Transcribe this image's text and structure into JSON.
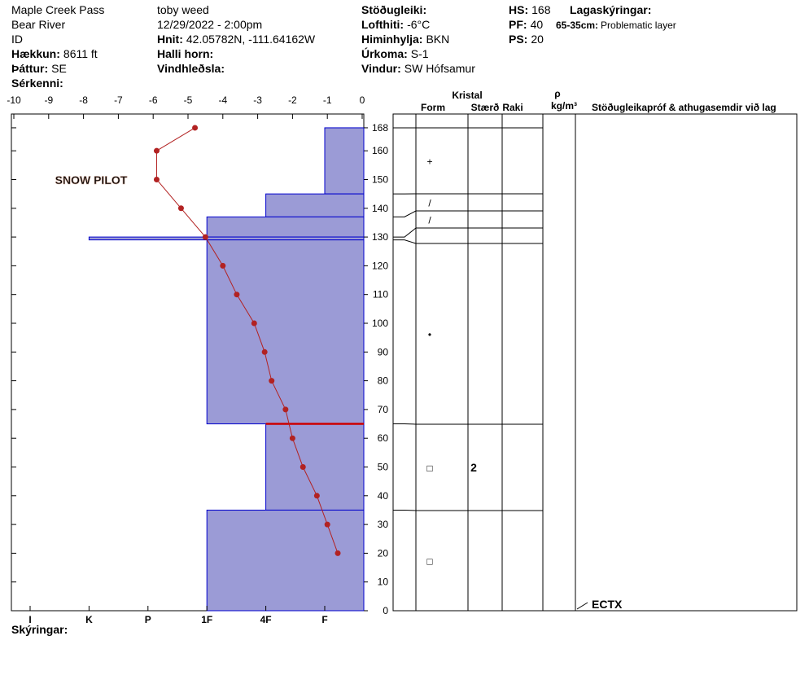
{
  "header": {
    "columns": [
      [
        {
          "value": "Maple Creek Pass"
        },
        {
          "value": "Bear River"
        },
        {
          "value": "ID"
        },
        {
          "label": "Hækkun:",
          "value": "8611 ft"
        },
        {
          "label": "Þáttur:",
          "value": "SE"
        },
        {
          "label": "Sérkenni:"
        }
      ],
      [
        {
          "value": "toby weed"
        },
        {
          "value": "12/29/2022 - 2:00pm"
        },
        {
          "label": "Hnit:",
          "value": "42.05782N, -111.64162W"
        },
        {
          "label": "Halli horn:"
        },
        {
          "label": "Vindhleðsla:"
        }
      ],
      [
        {
          "label": "Stöðugleiki:"
        },
        {
          "label": "Lofthiti:",
          "value": "-6°C"
        },
        {
          "label": "Himinhylja:",
          "value": "BKN"
        },
        {
          "label": "Úrkoma:",
          "value": "S-1"
        },
        {
          "label": "Vindur:",
          "value": "SW Hófsamur"
        }
      ],
      [
        {
          "label": "HS:",
          "value": "168"
        },
        {
          "label": "PF:",
          "value": "40"
        },
        {
          "label": "PS:",
          "value": "20"
        }
      ]
    ],
    "legend_title": "Lagaskýringar:",
    "legend": [
      {
        "label": "65-35cm:",
        "value": "Problematic layer"
      }
    ]
  },
  "footer": "Skýringar:",
  "chart_data": {
    "type": "snow_profile",
    "watermark": "SNOW PILOT",
    "temperature": {
      "xlim": [
        -10,
        0
      ],
      "xticks": [
        -10,
        -9,
        -8,
        -7,
        -6,
        -5,
        -4,
        -3,
        -2,
        -1,
        0
      ],
      "color": "#b22222",
      "heights": [
        168,
        160,
        150,
        140,
        130,
        120,
        110,
        100,
        90,
        80,
        70,
        60,
        50,
        40,
        30,
        20
      ],
      "values": [
        -4.8,
        -5.9,
        -5.9,
        -5.2,
        -4.5,
        -4.0,
        -3.6,
        -3.1,
        -2.8,
        -2.6,
        -2.2,
        -2.0,
        -1.7,
        -1.3,
        -1.0,
        -0.7
      ]
    },
    "ylim": [
      0,
      172.8
    ],
    "yticks": [
      0,
      10,
      20,
      30,
      40,
      50,
      60,
      70,
      80,
      90,
      100,
      110,
      120,
      130,
      140,
      150,
      160,
      168
    ],
    "hardness_ticks": [
      "I",
      "K",
      "P",
      "1F",
      "4F",
      "F"
    ],
    "layer_color": "#9b9bd6",
    "layer_edge": "#0000cc",
    "layers": [
      {
        "top": 168,
        "bottom": 145,
        "hardness": "F",
        "form": "+"
      },
      {
        "top": 145,
        "bottom": 137,
        "hardness": "4F",
        "form": "/"
      },
      {
        "top": 137,
        "bottom": 130,
        "hardness": "1F",
        "form": "/"
      },
      {
        "top": 130,
        "bottom": 129,
        "hardness": "K"
      },
      {
        "top": 129,
        "bottom": 65,
        "hardness": "1F",
        "form": "•"
      },
      {
        "top": 65,
        "bottom": 35,
        "hardness": "4F",
        "form": "□",
        "size": "2"
      },
      {
        "top": 35,
        "bottom": 0,
        "hardness": "1F",
        "form": "□"
      }
    ],
    "problem_layer": {
      "top": 65,
      "bottom": 35,
      "color": "#cc0000"
    },
    "columns": {
      "crystal": "Kristal",
      "form": "Form",
      "size": "Stærð",
      "moisture": "Raki",
      "density_symbol": "ρ",
      "density_unit": "kg/m³",
      "tests_title": "Stöðugleikapróf & athugasemdir við lag"
    },
    "tests": [
      {
        "height": 0,
        "result": "ECTX"
      }
    ]
  }
}
